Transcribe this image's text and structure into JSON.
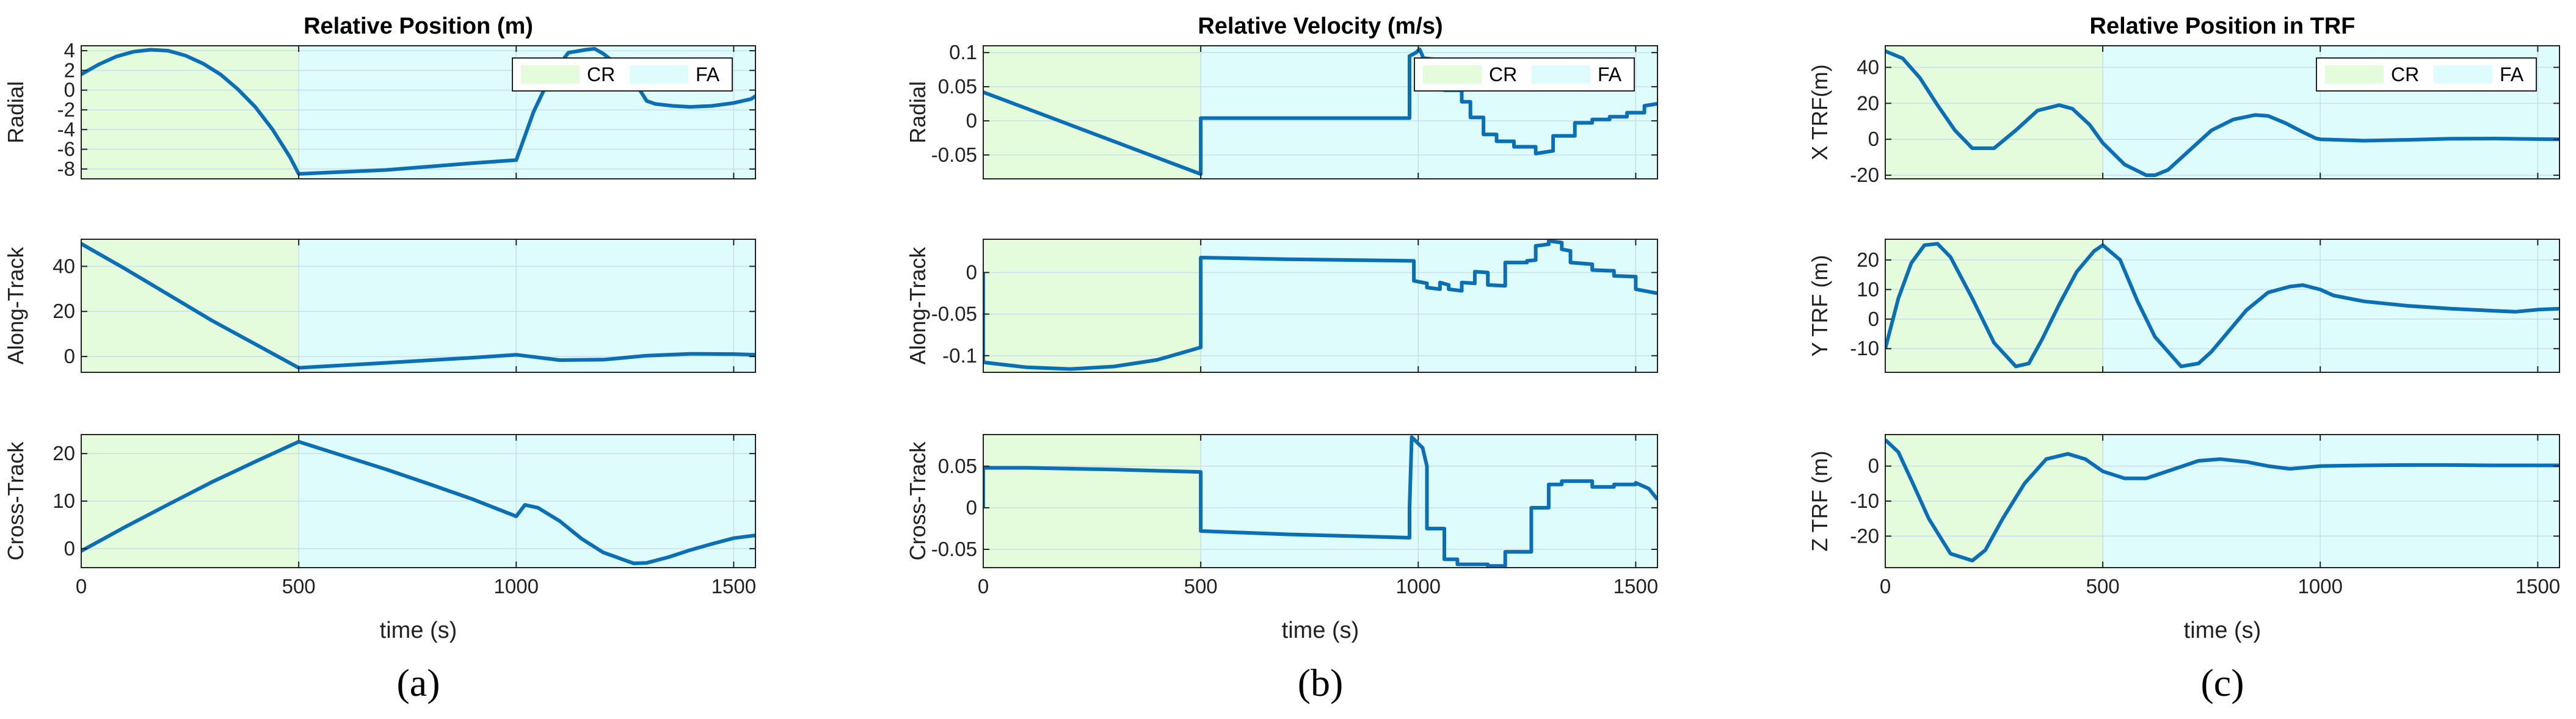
{
  "colors": {
    "line": "#0b6fb5",
    "cr_region": "#e4fbdc",
    "fa_region": "#dffcfc",
    "grid": "#c9ddeb",
    "axis": "#222222"
  },
  "chart_data": [
    {
      "type": "line",
      "panel_label": "(a)",
      "title": "Relative Position (m)",
      "xlabel": "time (s)",
      "legend": {
        "entries": [
          "CR",
          "FA"
        ],
        "location": "top-right",
        "subplot": 0
      },
      "regions": [
        {
          "name": "CR",
          "x_range": [
            0,
            500
          ]
        },
        {
          "name": "FA",
          "x_range": [
            500,
            1550
          ]
        }
      ],
      "subplots": [
        {
          "ylabel": "Radial",
          "xlim": [
            0,
            1550
          ],
          "xticks": [
            0,
            500,
            1000,
            1500
          ],
          "ylim": [
            -9,
            4.5
          ],
          "yticks": [
            4,
            2,
            0,
            -2,
            -4,
            -6,
            -8
          ],
          "x": [
            0,
            40,
            80,
            120,
            160,
            200,
            240,
            280,
            320,
            360,
            400,
            440,
            480,
            500,
            700,
            900,
            1000,
            1040,
            1080,
            1120,
            1160,
            1180,
            1200,
            1240,
            1280,
            1300,
            1320,
            1360,
            1400,
            1450,
            1500,
            1540,
            1550
          ],
          "y": [
            1.6,
            2.6,
            3.4,
            3.9,
            4.1,
            4.0,
            3.5,
            2.7,
            1.6,
            0.1,
            -1.7,
            -4.0,
            -6.8,
            -8.5,
            -8.1,
            -7.4,
            -7.1,
            -2.2,
            1.5,
            3.8,
            4.1,
            4.2,
            3.7,
            2.3,
            0.3,
            -1.1,
            -1.4,
            -1.6,
            -1.7,
            -1.6,
            -1.3,
            -0.9,
            -0.6
          ]
        },
        {
          "ylabel": "Along-Track",
          "xlim": [
            0,
            1550
          ],
          "xticks": [
            0,
            500,
            1000,
            1500
          ],
          "ylim": [
            -7,
            52
          ],
          "yticks": [
            0,
            20,
            40
          ],
          "x": [
            0,
            100,
            200,
            300,
            400,
            500,
            700,
            900,
            1000,
            1100,
            1200,
            1300,
            1400,
            1500,
            1550
          ],
          "y": [
            50,
            39,
            27.5,
            16,
            5.5,
            -5,
            -2.8,
            -0.5,
            0.8,
            -1.6,
            -1.4,
            0.4,
            1.2,
            1.1,
            0.8
          ]
        },
        {
          "ylabel": "Cross-Track",
          "xlim": [
            0,
            1550
          ],
          "xticks": [
            0,
            500,
            1000,
            1500
          ],
          "ylim": [
            -4,
            24
          ],
          "yticks": [
            0,
            10,
            20
          ],
          "x": [
            0,
            100,
            200,
            300,
            400,
            500,
            600,
            700,
            800,
            900,
            1000,
            1020,
            1050,
            1100,
            1150,
            1200,
            1270,
            1300,
            1350,
            1400,
            1450,
            1500,
            1550
          ],
          "y": [
            -0.5,
            4.5,
            9.3,
            14.0,
            18.3,
            22.5,
            19.6,
            16.7,
            13.6,
            10.4,
            6.8,
            9.2,
            8.6,
            5.8,
            2.1,
            -0.8,
            -3.1,
            -3.0,
            -1.8,
            -0.3,
            1.0,
            2.2,
            2.8
          ]
        }
      ]
    },
    {
      "type": "line",
      "panel_label": "(b)",
      "title": "Relative Velocity (m/s)",
      "xlabel": "time (s)",
      "legend": {
        "entries": [
          "CR",
          "FA"
        ],
        "location": "top-right",
        "subplot": 0
      },
      "regions": [
        {
          "name": "CR",
          "x_range": [
            0,
            500
          ]
        },
        {
          "name": "FA",
          "x_range": [
            500,
            1550
          ]
        }
      ],
      "subplots": [
        {
          "ylabel": "Radial",
          "xlim": [
            0,
            1550
          ],
          "xticks": [
            0,
            500,
            1000,
            1500
          ],
          "ylim": [
            -0.085,
            0.11
          ],
          "yticks": [
            0.1,
            0.05,
            0,
            -0.05
          ],
          "x": [
            0,
            500,
            500,
            980,
            980,
            995,
            1003,
            1010,
            1010,
            1040,
            1040,
            1060,
            1060,
            1100,
            1100,
            1120,
            1120,
            1150,
            1150,
            1180,
            1180,
            1220,
            1220,
            1270,
            1270,
            1310,
            1310,
            1360,
            1360,
            1400,
            1400,
            1440,
            1440,
            1480,
            1480,
            1520,
            1520,
            1550
          ],
          "y": [
            0.042,
            -0.078,
            0.004,
            0.004,
            0.095,
            0.1,
            0.105,
            0.095,
            0.092,
            0.09,
            0.065,
            0.065,
            0.045,
            0.045,
            0.028,
            0.028,
            0.005,
            0.005,
            -0.02,
            -0.02,
            -0.03,
            -0.03,
            -0.038,
            -0.038,
            -0.048,
            -0.044,
            -0.022,
            -0.022,
            -0.003,
            -0.003,
            0.002,
            0.002,
            0.006,
            0.006,
            0.012,
            0.012,
            0.022,
            0.025
          ]
        },
        {
          "ylabel": "Along-Track",
          "xlim": [
            0,
            1550
          ],
          "xticks": [
            0,
            500,
            1000,
            1500
          ],
          "ylim": [
            -0.12,
            0.04
          ],
          "yticks": [
            0,
            -0.05,
            -0.1
          ],
          "x": [
            0,
            0,
            100,
            200,
            300,
            400,
            500,
            500,
            700,
            990,
            990,
            1020,
            1020,
            1050,
            1050,
            1070,
            1070,
            1100,
            1100,
            1130,
            1130,
            1160,
            1160,
            1200,
            1200,
            1250,
            1250,
            1270,
            1270,
            1300,
            1300,
            1330,
            1330,
            1350,
            1350,
            1400,
            1400,
            1450,
            1450,
            1500,
            1500,
            1550
          ],
          "y": [
            0.0,
            -0.108,
            -0.114,
            -0.116,
            -0.113,
            -0.105,
            -0.09,
            0.018,
            0.016,
            0.014,
            -0.01,
            -0.013,
            -0.018,
            -0.02,
            -0.012,
            -0.015,
            -0.02,
            -0.022,
            -0.012,
            -0.013,
            0.001,
            0.0,
            -0.015,
            -0.016,
            0.012,
            0.012,
            0.014,
            0.015,
            0.032,
            0.034,
            0.038,
            0.036,
            0.028,
            0.026,
            0.012,
            0.01,
            0.003,
            0.002,
            -0.004,
            -0.005,
            -0.02,
            -0.025
          ]
        },
        {
          "ylabel": "Cross-Track",
          "xlim": [
            0,
            1550
          ],
          "xticks": [
            0,
            500,
            1000,
            1500
          ],
          "ylim": [
            -0.072,
            0.088
          ],
          "yticks": [
            0.05,
            0,
            -0.05
          ],
          "x": [
            0,
            0,
            100,
            300,
            500,
            500,
            700,
            980,
            980,
            985,
            1010,
            1020,
            1020,
            1060,
            1060,
            1090,
            1090,
            1160,
            1160,
            1200,
            1200,
            1260,
            1260,
            1300,
            1300,
            1330,
            1330,
            1400,
            1400,
            1450,
            1450,
            1500,
            1500,
            1530,
            1550
          ],
          "y": [
            0.0,
            0.048,
            0.048,
            0.046,
            0.043,
            -0.028,
            -0.032,
            -0.036,
            0.0,
            0.085,
            0.072,
            0.05,
            -0.025,
            -0.025,
            -0.062,
            -0.062,
            -0.068,
            -0.068,
            -0.07,
            -0.07,
            -0.053,
            -0.053,
            0.0,
            0.0,
            0.028,
            0.028,
            0.032,
            0.032,
            0.025,
            0.025,
            0.028,
            0.028,
            0.03,
            0.023,
            0.01
          ]
        }
      ]
    },
    {
      "type": "line",
      "panel_label": "(c)",
      "title": "Relative Position in TRF",
      "xlabel": "time (s)",
      "legend": {
        "entries": [
          "CR",
          "FA"
        ],
        "location": "top-right",
        "subplot": 0
      },
      "regions": [
        {
          "name": "CR",
          "x_range": [
            0,
            500
          ]
        },
        {
          "name": "FA",
          "x_range": [
            500,
            1550
          ]
        }
      ],
      "subplots": [
        {
          "ylabel": "X TRF(m)",
          "xlim": [
            0,
            1550
          ],
          "xticks": [
            0,
            500,
            1000,
            1500
          ],
          "ylim": [
            -22,
            52
          ],
          "yticks": [
            40,
            20,
            0,
            -20
          ],
          "x": [
            0,
            40,
            80,
            120,
            160,
            200,
            250,
            300,
            350,
            400,
            430,
            470,
            500,
            550,
            600,
            620,
            650,
            700,
            750,
            800,
            850,
            880,
            920,
            960,
            990,
            1000,
            1100,
            1200,
            1300,
            1400,
            1500,
            1550
          ],
          "y": [
            49,
            45,
            34,
            19,
            5,
            -5,
            -5,
            5,
            16,
            19,
            17,
            8,
            -2,
            -14,
            -20,
            -20,
            -17,
            -6,
            5,
            11,
            13.5,
            13,
            9,
            4,
            0.5,
            0,
            -0.8,
            -0.3,
            0.3,
            0.4,
            0.1,
            0
          ]
        },
        {
          "ylabel": "Y TRF (m)",
          "xlim": [
            0,
            1550
          ],
          "xticks": [
            0,
            500,
            1000,
            1500
          ],
          "ylim": [
            -18,
            27
          ],
          "yticks": [
            20,
            10,
            0,
            -10
          ],
          "x": [
            0,
            30,
            60,
            90,
            120,
            150,
            200,
            250,
            300,
            330,
            360,
            400,
            440,
            480,
            500,
            540,
            580,
            620,
            680,
            720,
            750,
            790,
            830,
            880,
            930,
            960,
            1000,
            1030,
            1100,
            1200,
            1300,
            1400,
            1450,
            1500,
            1550
          ],
          "y": [
            -10,
            7,
            19,
            25,
            25.5,
            21,
            7,
            -8,
            -16,
            -15,
            -7,
            5,
            16,
            23,
            25,
            20,
            6,
            -6,
            -16,
            -15,
            -11,
            -4,
            3,
            9,
            11,
            11.5,
            10,
            8,
            6,
            4.5,
            3.5,
            2.8,
            2.5,
            3.2,
            3.5
          ]
        },
        {
          "ylabel": "Z TRF (m)",
          "xlim": [
            0,
            1550
          ],
          "xticks": [
            0,
            500,
            1000,
            1500
          ],
          "ylim": [
            -29,
            9
          ],
          "yticks": [
            0,
            -10,
            -20
          ],
          "x": [
            0,
            30,
            60,
            100,
            150,
            200,
            230,
            270,
            320,
            370,
            420,
            460,
            500,
            550,
            600,
            660,
            720,
            770,
            830,
            880,
            930,
            1000,
            1100,
            1200,
            1300,
            1400,
            1500,
            1550
          ],
          "y": [
            7.5,
            4,
            -4,
            -15,
            -25,
            -27,
            -24,
            -15,
            -5,
            2,
            3.5,
            2,
            -1.5,
            -3.5,
            -3.5,
            -1,
            1.5,
            2,
            1.2,
            0,
            -0.8,
            0,
            0.2,
            0.3,
            0.3,
            0.2,
            0.2,
            0.2
          ]
        }
      ]
    }
  ]
}
